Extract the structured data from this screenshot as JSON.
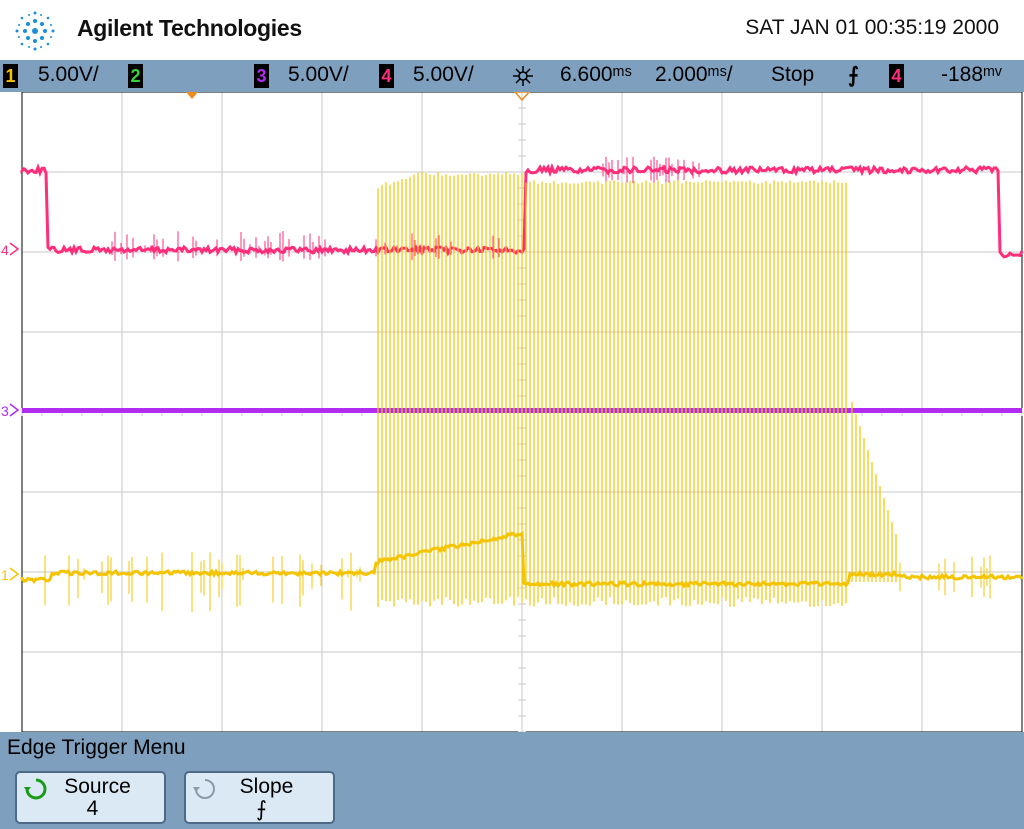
{
  "header": {
    "brand": "Agilent Technologies",
    "datetime": "SAT JAN 01 00:35:19 2000"
  },
  "status_bar": {
    "ch1": {
      "num": "1",
      "scale": "5.00V/",
      "color": "#f5c400"
    },
    "ch2": {
      "num": "2",
      "color": "#3bd13b"
    },
    "ch3": {
      "num": "3",
      "scale": "5.00V/",
      "color": "#b12cf0"
    },
    "ch4": {
      "num": "4",
      "scale": "5.00V/",
      "color": "#ff2d7a"
    },
    "time_delay": "6.600ᵐˢ",
    "time_div": "2.000ᵐˢ/",
    "run_state": "Stop",
    "trigger_slope_symbol": "⨍",
    "trigger_source": "4",
    "trigger_level": "-188ᵐᵛ"
  },
  "markers": {
    "ch1": "1",
    "ch3": "3",
    "ch4": "4"
  },
  "menu": {
    "title": "Edge Trigger Menu",
    "softkeys": [
      {
        "label": "Source",
        "value": "4",
        "icon": "rotate-knob-icon",
        "active": true
      },
      {
        "label": "Slope",
        "value": "⨍",
        "icon": "rotate-knob-icon",
        "active": false
      }
    ]
  },
  "colors": {
    "ch1": "#f5c400",
    "ch3": "#b12cf0",
    "ch4": "#ff2d7a",
    "grid": "#c8c8c8",
    "bar": "#7f9fbf"
  }
}
